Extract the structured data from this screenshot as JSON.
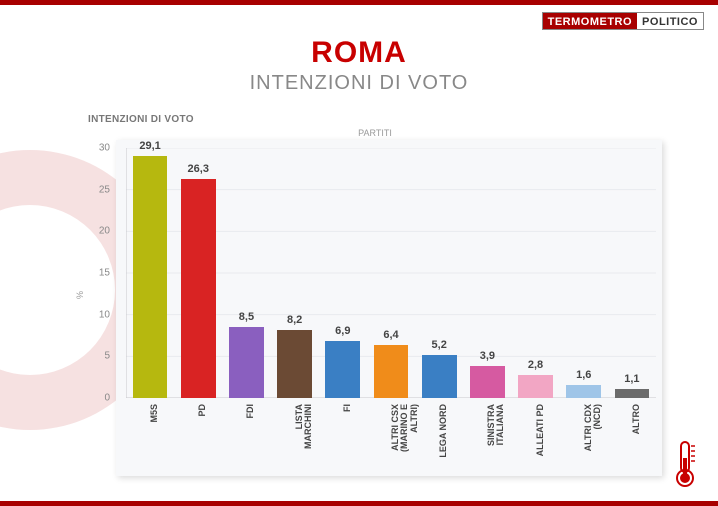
{
  "logo": {
    "left": "TERMOMETRO",
    "right": "POLITICO"
  },
  "title": "ROMA",
  "subtitle": "INTENZIONI DI VOTO",
  "chart": {
    "type": "bar",
    "title": "INTENZIONI DI VOTO",
    "xaxis_title": "PARTITI",
    "yaxis_symbol": "%",
    "ylim": [
      0,
      30
    ],
    "ytick_step": 5,
    "background_color": "#f7f8fa",
    "grid_color": "#e9eaee",
    "axis_color": "#c8c8cc",
    "title_fontsize": 10,
    "value_fontsize": 11,
    "xlabel_fontsize": 9,
    "bar_width_ratio": 0.72,
    "categories": [
      "M5S",
      "PD",
      "FDI",
      "LISTA\nMARCHINI",
      "FI",
      "ALTRI CSX\n(MARINO E\nALTRI)",
      "LEGA NORD",
      "SINISTRA\nITALIANA",
      "ALLEATI PD",
      "ALTRI CDX\n(NCD)",
      "ALTRO"
    ],
    "values": [
      29.1,
      26.3,
      8.5,
      8.2,
      6.9,
      6.4,
      5.2,
      3.9,
      2.8,
      1.6,
      1.1
    ],
    "value_labels": [
      "29,1",
      "26,3",
      "8,5",
      "8,2",
      "6,9",
      "6,4",
      "5,2",
      "3,9",
      "2,8",
      "1,6",
      "1,1"
    ],
    "bar_colors": [
      "#b6b80f",
      "#d92323",
      "#8a5fbf",
      "#6b4a34",
      "#3a7fc4",
      "#f08c1a",
      "#3a7fc4",
      "#d65aa1",
      "#f2a6c4",
      "#9fc5e8",
      "#6b6b6b"
    ]
  },
  "colors": {
    "accent_red": "#a80000",
    "title_red": "#c80000",
    "subtitle_gray": "#888888",
    "bg_shape": "#f6e1e1"
  }
}
